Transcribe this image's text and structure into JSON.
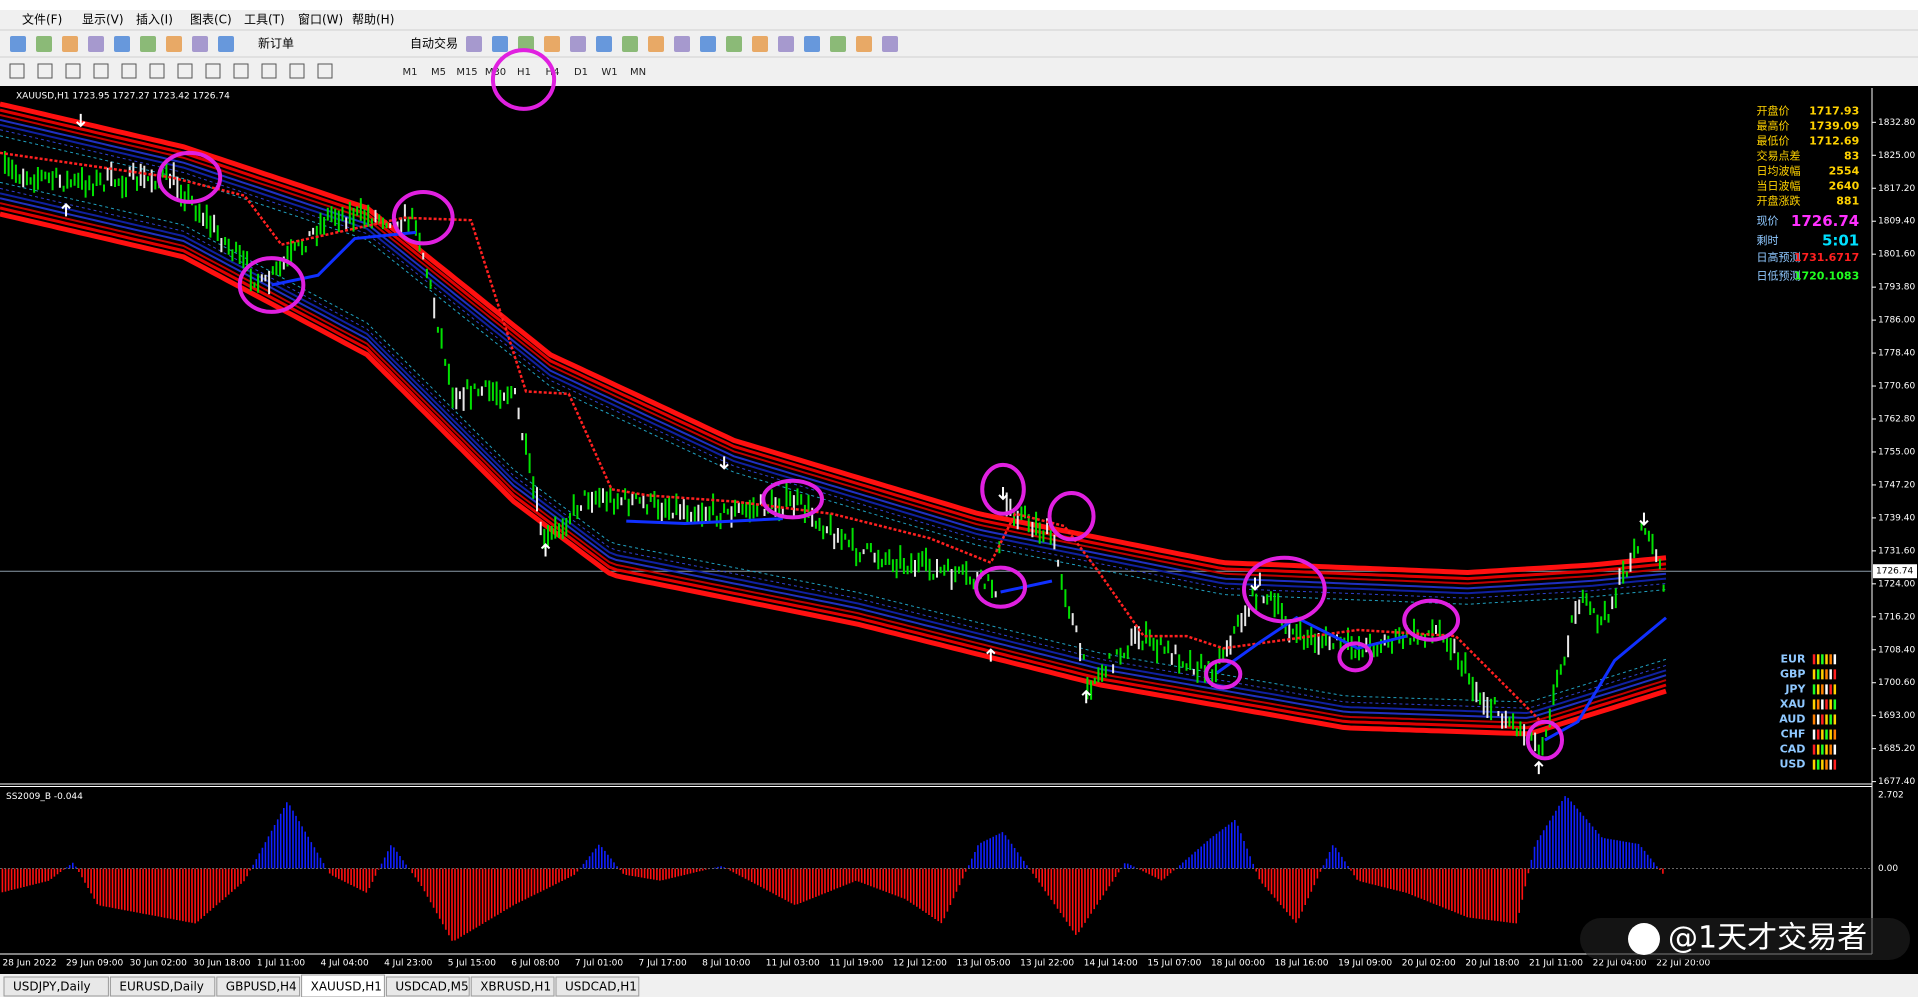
{
  "menu": [
    "文件(F)",
    "显示(V)",
    "插入(I)",
    "图表(C)",
    "工具(T)",
    "窗口(W)",
    "帮助(H)"
  ],
  "toolbar": {
    "new_order": "新订单",
    "auto_trade": "自动交易",
    "timeframes": [
      "M1",
      "M5",
      "M15",
      "M30",
      "H1",
      "H4",
      "D1",
      "W1",
      "MN"
    ]
  },
  "chart": {
    "header": "XAUUSD,H1  1723.95 1727.27 1723.42 1726.74",
    "price_axis": [
      "1832.80",
      "1825.00",
      "1817.20",
      "1809.40",
      "1801.60",
      "1793.80",
      "1786.00",
      "1778.40",
      "1770.60",
      "1762.80",
      "1755.00",
      "1747.20",
      "1739.40",
      "1731.60",
      "1724.00",
      "1716.20",
      "1708.40",
      "1700.60",
      "1693.00",
      "1685.20",
      "1677.40"
    ],
    "current_price": "1726.74",
    "time_axis": [
      "28 Jun 2022",
      "29 Jun 09:00",
      "30 Jun 02:00",
      "30 Jun 18:00",
      "1 Jul 11:00",
      "4 Jul 04:00",
      "4 Jul 23:00",
      "5 Jul 15:00",
      "6 Jul 08:00",
      "7 Jul 01:00",
      "7 Jul 17:00",
      "8 Jul 10:00",
      "11 Jul 03:00",
      "11 Jul 19:00",
      "12 Jul 12:00",
      "13 Jul 05:00",
      "13 Jul 22:00",
      "14 Jul 14:00",
      "15 Jul 07:00",
      "18 Jul 00:00",
      "18 Jul 16:00",
      "19 Jul 09:00",
      "20 Jul 02:00",
      "20 Jul 18:00",
      "21 Jul 11:00",
      "22 Jul 04:00",
      "22 Jul 20:00"
    ],
    "indicator": {
      "label": "SS2009_B -0.044",
      "axis": [
        "2.702",
        "0.00"
      ]
    }
  },
  "info_panel": [
    {
      "label": "开盘价",
      "value": "1717.93"
    },
    {
      "label": "最高价",
      "value": "1739.09"
    },
    {
      "label": "最低价",
      "value": "1712.69"
    },
    {
      "label": "交易点差",
      "value": "83"
    },
    {
      "label": "日均波幅",
      "value": "2554"
    },
    {
      "label": "当日波幅",
      "value": "2640"
    },
    {
      "label": "开盘涨跌",
      "value": "881"
    },
    {
      "label": "现价",
      "value": "1726.74"
    },
    {
      "label": "剩时",
      "value": "5:01"
    },
    {
      "label": "日高预测",
      "value": "1731.6717"
    },
    {
      "label": "日低预测",
      "value": "1720.1083"
    }
  ],
  "currencies": [
    "EUR",
    "GBP",
    "JPY",
    "XAU",
    "AUD",
    "CHF",
    "CAD",
    "USD"
  ],
  "tabs": [
    "USDJPY,Daily",
    "EURUSD,Daily",
    "GBPUSD,H4",
    "XAUUSD,H1",
    "USDCAD,M5",
    "XBRUSD,H1",
    "USDCAD,H1"
  ],
  "watermark": "@1天才交易者"
}
